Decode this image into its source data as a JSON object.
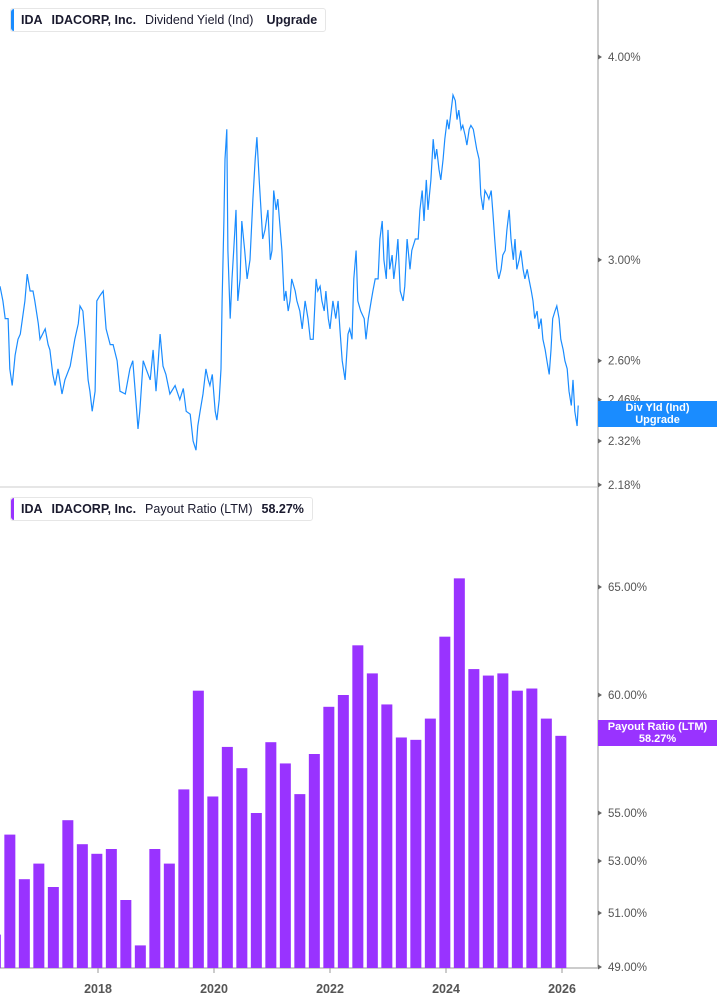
{
  "top_legend": {
    "ticker": "IDA",
    "company": "IDACORP, Inc.",
    "metric": "Dividend Yield (Ind)",
    "value": "Upgrade"
  },
  "top_tag": {
    "line1": "Div Yld (Ind)",
    "line2": "Upgrade"
  },
  "bottom_legend": {
    "ticker": "IDA",
    "company": "IDACORP, Inc.",
    "metric": "Payout Ratio (LTM)",
    "value": "58.27%"
  },
  "bottom_tag": {
    "line1": "Payout Ratio (LTM)",
    "line2": "58.27%"
  },
  "colors": {
    "yield": "#1a8cff",
    "payout": "#9933ff"
  },
  "chart_data": [
    {
      "type": "line",
      "series_name": "Dividend Yield (Ind)",
      "y_scale": "log",
      "y_ticks": [
        "4.00%",
        "3.00%",
        "2.60%",
        "2.46%",
        "2.32%",
        "2.18%"
      ],
      "y_tick_values": [
        4.0,
        3.0,
        2.6,
        2.46,
        2.32,
        2.18
      ],
      "unit": "%",
      "points": [
        [
          2016.31,
          2.89
        ],
        [
          2016.36,
          2.83
        ],
        [
          2016.4,
          2.76
        ],
        [
          2016.45,
          2.76
        ],
        [
          2016.48,
          2.57
        ],
        [
          2016.52,
          2.51
        ],
        [
          2016.57,
          2.62
        ],
        [
          2016.62,
          2.68
        ],
        [
          2016.66,
          2.7
        ],
        [
          2016.74,
          2.83
        ],
        [
          2016.78,
          2.94
        ],
        [
          2016.83,
          2.87
        ],
        [
          2016.88,
          2.87
        ],
        [
          2016.91,
          2.83
        ],
        [
          2016.97,
          2.74
        ],
        [
          2017.0,
          2.68
        ],
        [
          2017.09,
          2.72
        ],
        [
          2017.14,
          2.66
        ],
        [
          2017.17,
          2.64
        ],
        [
          2017.22,
          2.55
        ],
        [
          2017.26,
          2.51
        ],
        [
          2017.31,
          2.57
        ],
        [
          2017.38,
          2.48
        ],
        [
          2017.43,
          2.53
        ],
        [
          2017.52,
          2.58
        ],
        [
          2017.6,
          2.68
        ],
        [
          2017.66,
          2.74
        ],
        [
          2017.69,
          2.81
        ],
        [
          2017.74,
          2.79
        ],
        [
          2017.78,
          2.68
        ],
        [
          2017.83,
          2.53
        ],
        [
          2017.86,
          2.49
        ],
        [
          2017.9,
          2.42
        ],
        [
          2017.95,
          2.49
        ],
        [
          2017.98,
          2.83
        ],
        [
          2018.03,
          2.85
        ],
        [
          2018.09,
          2.87
        ],
        [
          2018.14,
          2.72
        ],
        [
          2018.21,
          2.66
        ],
        [
          2018.26,
          2.66
        ],
        [
          2018.33,
          2.6
        ],
        [
          2018.38,
          2.49
        ],
        [
          2018.47,
          2.48
        ],
        [
          2018.55,
          2.57
        ],
        [
          2018.6,
          2.6
        ],
        [
          2018.66,
          2.44
        ],
        [
          2018.69,
          2.36
        ],
        [
          2018.72,
          2.42
        ],
        [
          2018.78,
          2.6
        ],
        [
          2018.83,
          2.57
        ],
        [
          2018.9,
          2.53
        ],
        [
          2018.95,
          2.64
        ],
        [
          2019.0,
          2.49
        ],
        [
          2019.03,
          2.57
        ],
        [
          2019.07,
          2.7
        ],
        [
          2019.12,
          2.58
        ],
        [
          2019.17,
          2.55
        ],
        [
          2019.24,
          2.48
        ],
        [
          2019.33,
          2.51
        ],
        [
          2019.41,
          2.46
        ],
        [
          2019.47,
          2.5
        ],
        [
          2019.52,
          2.42
        ],
        [
          2019.59,
          2.41
        ],
        [
          2019.64,
          2.32
        ],
        [
          2019.69,
          2.29
        ],
        [
          2019.72,
          2.37
        ],
        [
          2019.76,
          2.42
        ],
        [
          2019.81,
          2.48
        ],
        [
          2019.86,
          2.57
        ],
        [
          2019.9,
          2.53
        ],
        [
          2019.93,
          2.51
        ],
        [
          2019.97,
          2.55
        ],
        [
          2020.02,
          2.42
        ],
        [
          2020.05,
          2.39
        ],
        [
          2020.09,
          2.46
        ],
        [
          2020.12,
          2.57
        ],
        [
          2020.14,
          2.83
        ],
        [
          2020.17,
          3.17
        ],
        [
          2020.19,
          3.46
        ],
        [
          2020.22,
          3.61
        ],
        [
          2020.24,
          3.04
        ],
        [
          2020.28,
          2.76
        ],
        [
          2020.31,
          2.92
        ],
        [
          2020.34,
          3.04
        ],
        [
          2020.38,
          3.22
        ],
        [
          2020.41,
          2.83
        ],
        [
          2020.45,
          2.92
        ],
        [
          2020.48,
          3.17
        ],
        [
          2020.53,
          3.04
        ],
        [
          2020.57,
          2.92
        ],
        [
          2020.62,
          3.0
        ],
        [
          2020.67,
          3.27
        ],
        [
          2020.71,
          3.46
        ],
        [
          2020.74,
          3.57
        ],
        [
          2020.78,
          3.36
        ],
        [
          2020.81,
          3.22
        ],
        [
          2020.84,
          3.09
        ],
        [
          2020.88,
          3.13
        ],
        [
          2020.93,
          3.22
        ],
        [
          2020.97,
          3.0
        ],
        [
          2021.0,
          3.04
        ],
        [
          2021.03,
          3.31
        ],
        [
          2021.07,
          3.22
        ],
        [
          2021.1,
          3.27
        ],
        [
          2021.17,
          3.04
        ],
        [
          2021.21,
          2.83
        ],
        [
          2021.24,
          2.87
        ],
        [
          2021.28,
          2.79
        ],
        [
          2021.31,
          2.83
        ],
        [
          2021.34,
          2.92
        ],
        [
          2021.4,
          2.87
        ],
        [
          2021.43,
          2.83
        ],
        [
          2021.48,
          2.79
        ],
        [
          2021.52,
          2.72
        ],
        [
          2021.57,
          2.83
        ],
        [
          2021.62,
          2.76
        ],
        [
          2021.66,
          2.68
        ],
        [
          2021.71,
          2.68
        ],
        [
          2021.76,
          2.92
        ],
        [
          2021.79,
          2.87
        ],
        [
          2021.83,
          2.89
        ],
        [
          2021.86,
          2.83
        ],
        [
          2021.9,
          2.79
        ],
        [
          2021.93,
          2.87
        ],
        [
          2021.97,
          2.76
        ],
        [
          2022.0,
          2.72
        ],
        [
          2022.05,
          2.83
        ],
        [
          2022.1,
          2.76
        ],
        [
          2022.14,
          2.83
        ],
        [
          2022.17,
          2.72
        ],
        [
          2022.21,
          2.6
        ],
        [
          2022.26,
          2.53
        ],
        [
          2022.31,
          2.7
        ],
        [
          2022.34,
          2.72
        ],
        [
          2022.38,
          2.68
        ],
        [
          2022.41,
          2.92
        ],
        [
          2022.45,
          3.04
        ],
        [
          2022.48,
          2.83
        ],
        [
          2022.53,
          2.79
        ],
        [
          2022.59,
          2.76
        ],
        [
          2022.62,
          2.68
        ],
        [
          2022.66,
          2.76
        ],
        [
          2022.71,
          2.83
        ],
        [
          2022.74,
          2.87
        ],
        [
          2022.78,
          2.92
        ],
        [
          2022.83,
          2.92
        ],
        [
          2022.86,
          3.09
        ],
        [
          2022.9,
          3.17
        ],
        [
          2022.93,
          3.0
        ],
        [
          2022.97,
          2.92
        ],
        [
          2023.0,
          3.13
        ],
        [
          2023.03,
          2.96
        ],
        [
          2023.07,
          3.02
        ],
        [
          2023.1,
          2.92
        ],
        [
          2023.14,
          3.0
        ],
        [
          2023.17,
          3.09
        ],
        [
          2023.21,
          2.87
        ],
        [
          2023.26,
          2.83
        ],
        [
          2023.29,
          2.89
        ],
        [
          2023.33,
          3.09
        ],
        [
          2023.38,
          2.96
        ],
        [
          2023.41,
          3.04
        ],
        [
          2023.47,
          3.09
        ],
        [
          2023.52,
          3.09
        ],
        [
          2023.55,
          3.22
        ],
        [
          2023.59,
          3.31
        ],
        [
          2023.62,
          3.17
        ],
        [
          2023.66,
          3.36
        ],
        [
          2023.69,
          3.22
        ],
        [
          2023.74,
          3.36
        ],
        [
          2023.78,
          3.56
        ],
        [
          2023.81,
          3.46
        ],
        [
          2023.84,
          3.51
        ],
        [
          2023.88,
          3.41
        ],
        [
          2023.91,
          3.36
        ],
        [
          2023.95,
          3.46
        ],
        [
          2023.98,
          3.56
        ],
        [
          2024.02,
          3.66
        ],
        [
          2024.05,
          3.61
        ],
        [
          2024.09,
          3.71
        ],
        [
          2024.12,
          3.79
        ],
        [
          2024.16,
          3.76
        ],
        [
          2024.19,
          3.66
        ],
        [
          2024.22,
          3.71
        ],
        [
          2024.26,
          3.61
        ],
        [
          2024.29,
          3.63
        ],
        [
          2024.33,
          3.58
        ],
        [
          2024.36,
          3.53
        ],
        [
          2024.4,
          3.61
        ],
        [
          2024.43,
          3.63
        ],
        [
          2024.47,
          3.61
        ],
        [
          2024.5,
          3.56
        ],
        [
          2024.53,
          3.51
        ],
        [
          2024.57,
          3.46
        ],
        [
          2024.6,
          3.29
        ],
        [
          2024.64,
          3.22
        ],
        [
          2024.67,
          3.31
        ],
        [
          2024.71,
          3.29
        ],
        [
          2024.74,
          3.27
        ],
        [
          2024.78,
          3.31
        ],
        [
          2024.81,
          3.2
        ],
        [
          2024.84,
          3.09
        ],
        [
          2024.88,
          2.96
        ],
        [
          2024.91,
          2.92
        ],
        [
          2024.95,
          2.96
        ],
        [
          2024.98,
          3.02
        ],
        [
          2025.02,
          3.04
        ],
        [
          2025.05,
          3.13
        ],
        [
          2025.09,
          3.22
        ],
        [
          2025.12,
          3.09
        ],
        [
          2025.16,
          3.0
        ],
        [
          2025.19,
          3.09
        ],
        [
          2025.22,
          2.96
        ],
        [
          2025.26,
          3.0
        ],
        [
          2025.29,
          3.04
        ],
        [
          2025.33,
          2.96
        ],
        [
          2025.36,
          2.92
        ],
        [
          2025.4,
          2.96
        ],
        [
          2025.43,
          2.92
        ],
        [
          2025.47,
          2.87
        ],
        [
          2025.5,
          2.83
        ],
        [
          2025.53,
          2.76
        ],
        [
          2025.57,
          2.79
        ],
        [
          2025.6,
          2.72
        ],
        [
          2025.64,
          2.76
        ],
        [
          2025.67,
          2.68
        ],
        [
          2025.71,
          2.64
        ],
        [
          2025.74,
          2.6
        ],
        [
          2025.78,
          2.55
        ],
        [
          2025.81,
          2.64
        ],
        [
          2025.84,
          2.76
        ],
        [
          2025.88,
          2.79
        ],
        [
          2025.91,
          2.81
        ],
        [
          2025.95,
          2.76
        ],
        [
          2025.98,
          2.68
        ],
        [
          2026.02,
          2.64
        ],
        [
          2026.05,
          2.6
        ],
        [
          2026.09,
          2.57
        ],
        [
          2026.12,
          2.49
        ],
        [
          2026.16,
          2.44
        ],
        [
          2026.19,
          2.53
        ],
        [
          2026.22,
          2.42
        ],
        [
          2026.26,
          2.37
        ],
        [
          2026.28,
          2.44
        ]
      ]
    },
    {
      "type": "bar",
      "series_name": "Payout Ratio (LTM)",
      "unit": "%",
      "y_ticks": [
        "65.00%",
        "60.00%",
        "55.00%",
        "53.00%",
        "51.00%",
        "49.00%"
      ],
      "y_tick_values": [
        65,
        60,
        55,
        53,
        51,
        49
      ],
      "x_ticks": [
        "2018",
        "2020",
        "2022",
        "2024",
        "2026"
      ],
      "x": [
        2016.23,
        2016.48,
        2016.73,
        2016.98,
        2017.23,
        2017.48,
        2017.73,
        2017.98,
        2018.23,
        2018.48,
        2018.73,
        2018.98,
        2019.23,
        2019.48,
        2019.73,
        2019.98,
        2020.23,
        2020.48,
        2020.73,
        2020.98,
        2021.23,
        2021.48,
        2021.73,
        2021.98,
        2022.23,
        2022.48,
        2022.73,
        2022.98,
        2023.23,
        2023.48,
        2023.73,
        2023.98,
        2024.23,
        2024.48,
        2024.73,
        2024.98,
        2025.23,
        2025.48,
        2025.73,
        2025.98
      ],
      "values": [
        50.2,
        54.1,
        52.3,
        52.9,
        52.0,
        54.7,
        53.7,
        53.3,
        53.5,
        51.5,
        49.8,
        53.5,
        52.9,
        56.0,
        60.2,
        55.7,
        57.8,
        56.9,
        55.0,
        58.0,
        57.1,
        55.8,
        57.5,
        59.5,
        60.0,
        62.3,
        61.0,
        59.6,
        58.2,
        58.1,
        59.0,
        62.7,
        65.4,
        61.2,
        60.9,
        61.0,
        60.2,
        60.3,
        59.0,
        58.27
      ]
    }
  ]
}
